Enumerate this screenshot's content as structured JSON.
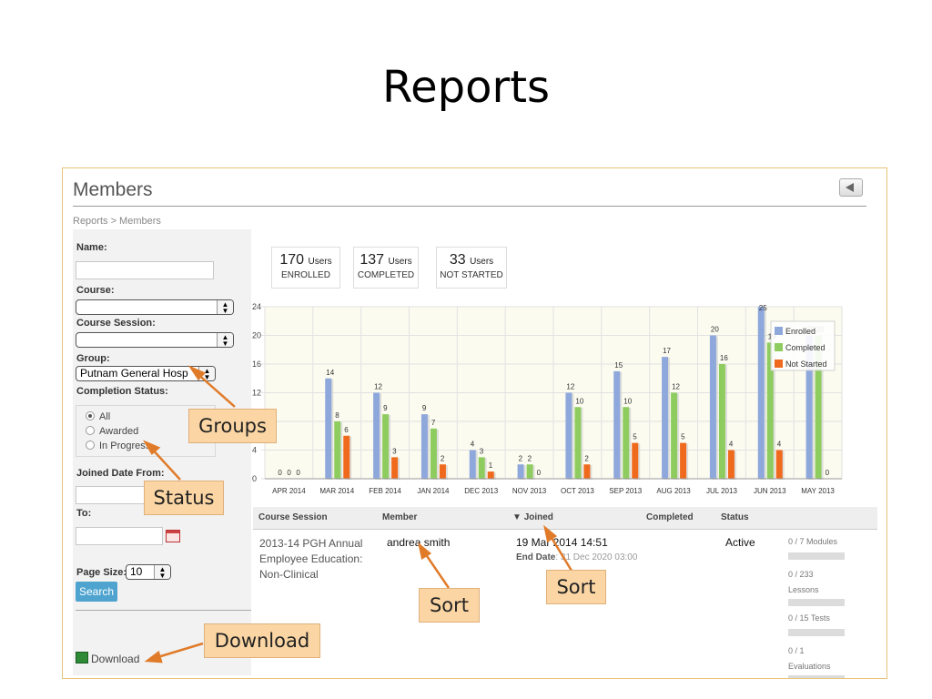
{
  "slide_title": "Reports",
  "panel": {
    "title": "Members",
    "breadcrumb": "Reports > Members"
  },
  "filters": {
    "name_label": "Name:",
    "name_value": "",
    "course_label": "Course:",
    "course_value": "",
    "session_label": "Course Session:",
    "session_value": "",
    "group_label": "Group:",
    "group_value": "Putnam General Hosp",
    "status_label": "Completion Status:",
    "status_options": [
      "All",
      "Awarded",
      "In Progress"
    ],
    "status_selected": "All",
    "date_from_label": "Joined Date From:",
    "date_to_label": "To:",
    "page_size_label": "Page Size:",
    "page_size_value": "10",
    "search_label": "Search",
    "download_label": "Download"
  },
  "stats": [
    {
      "value": "170",
      "unit": "Users",
      "caption": "ENROLLED"
    },
    {
      "value": "137",
      "unit": "Users",
      "caption": "COMPLETED"
    },
    {
      "value": "33",
      "unit": "Users",
      "caption": "NOT STARTED"
    }
  ],
  "chart_data": {
    "type": "bar",
    "categories": [
      "APR 2014",
      "MAR 2014",
      "FEB 2014",
      "JAN 2014",
      "DEC 2013",
      "NOV 2013",
      "OCT 2013",
      "SEP 2013",
      "AUG 2013",
      "JUL 2013",
      "JUN 2013",
      "MAY 2013"
    ],
    "series": [
      {
        "name": "Enrolled",
        "color": "#8fa8dc",
        "values": [
          0,
          14,
          12,
          9,
          4,
          2,
          12,
          15,
          17,
          20,
          25,
          20
        ]
      },
      {
        "name": "Completed",
        "color": "#8fcc5f",
        "values": [
          0,
          8,
          9,
          7,
          3,
          2,
          10,
          10,
          12,
          16,
          19,
          20
        ]
      },
      {
        "name": "Not Started",
        "color": "#f06a1e",
        "values": [
          0,
          6,
          3,
          2,
          1,
          0,
          2,
          5,
          5,
          4,
          4,
          0
        ]
      }
    ],
    "yticks": [
      0,
      4,
      8,
      12,
      16,
      20,
      24
    ],
    "ylim": [
      0,
      24
    ],
    "grid": true,
    "legend": "top-right"
  },
  "table": {
    "headers": [
      "Course Session",
      "Member",
      "Joined",
      "Completed",
      "Status"
    ],
    "row": {
      "session_lines": [
        "2013-14 PGH Annual",
        "Employee Education:",
        "Non-Clinical"
      ],
      "member": "andrea smith",
      "joined": "19 Mar 2014 14:51",
      "end_label": "End Date",
      "end_value": ": 31 Dec 2020 03:00",
      "status": "Active",
      "progress": [
        {
          "text": "0 / 7 Modules",
          "fraction": 0
        },
        {
          "text": "0 / 233",
          "text2": "Lessons",
          "fraction": 0
        },
        {
          "text": "0 / 15 Tests",
          "fraction": 0
        },
        {
          "text": "0 / 1",
          "text2": "Evaluations",
          "fraction": 0
        }
      ]
    }
  },
  "callouts": {
    "groups": "Groups",
    "status": "Status",
    "download": "Download",
    "sort1": "Sort",
    "sort2": "Sort"
  }
}
